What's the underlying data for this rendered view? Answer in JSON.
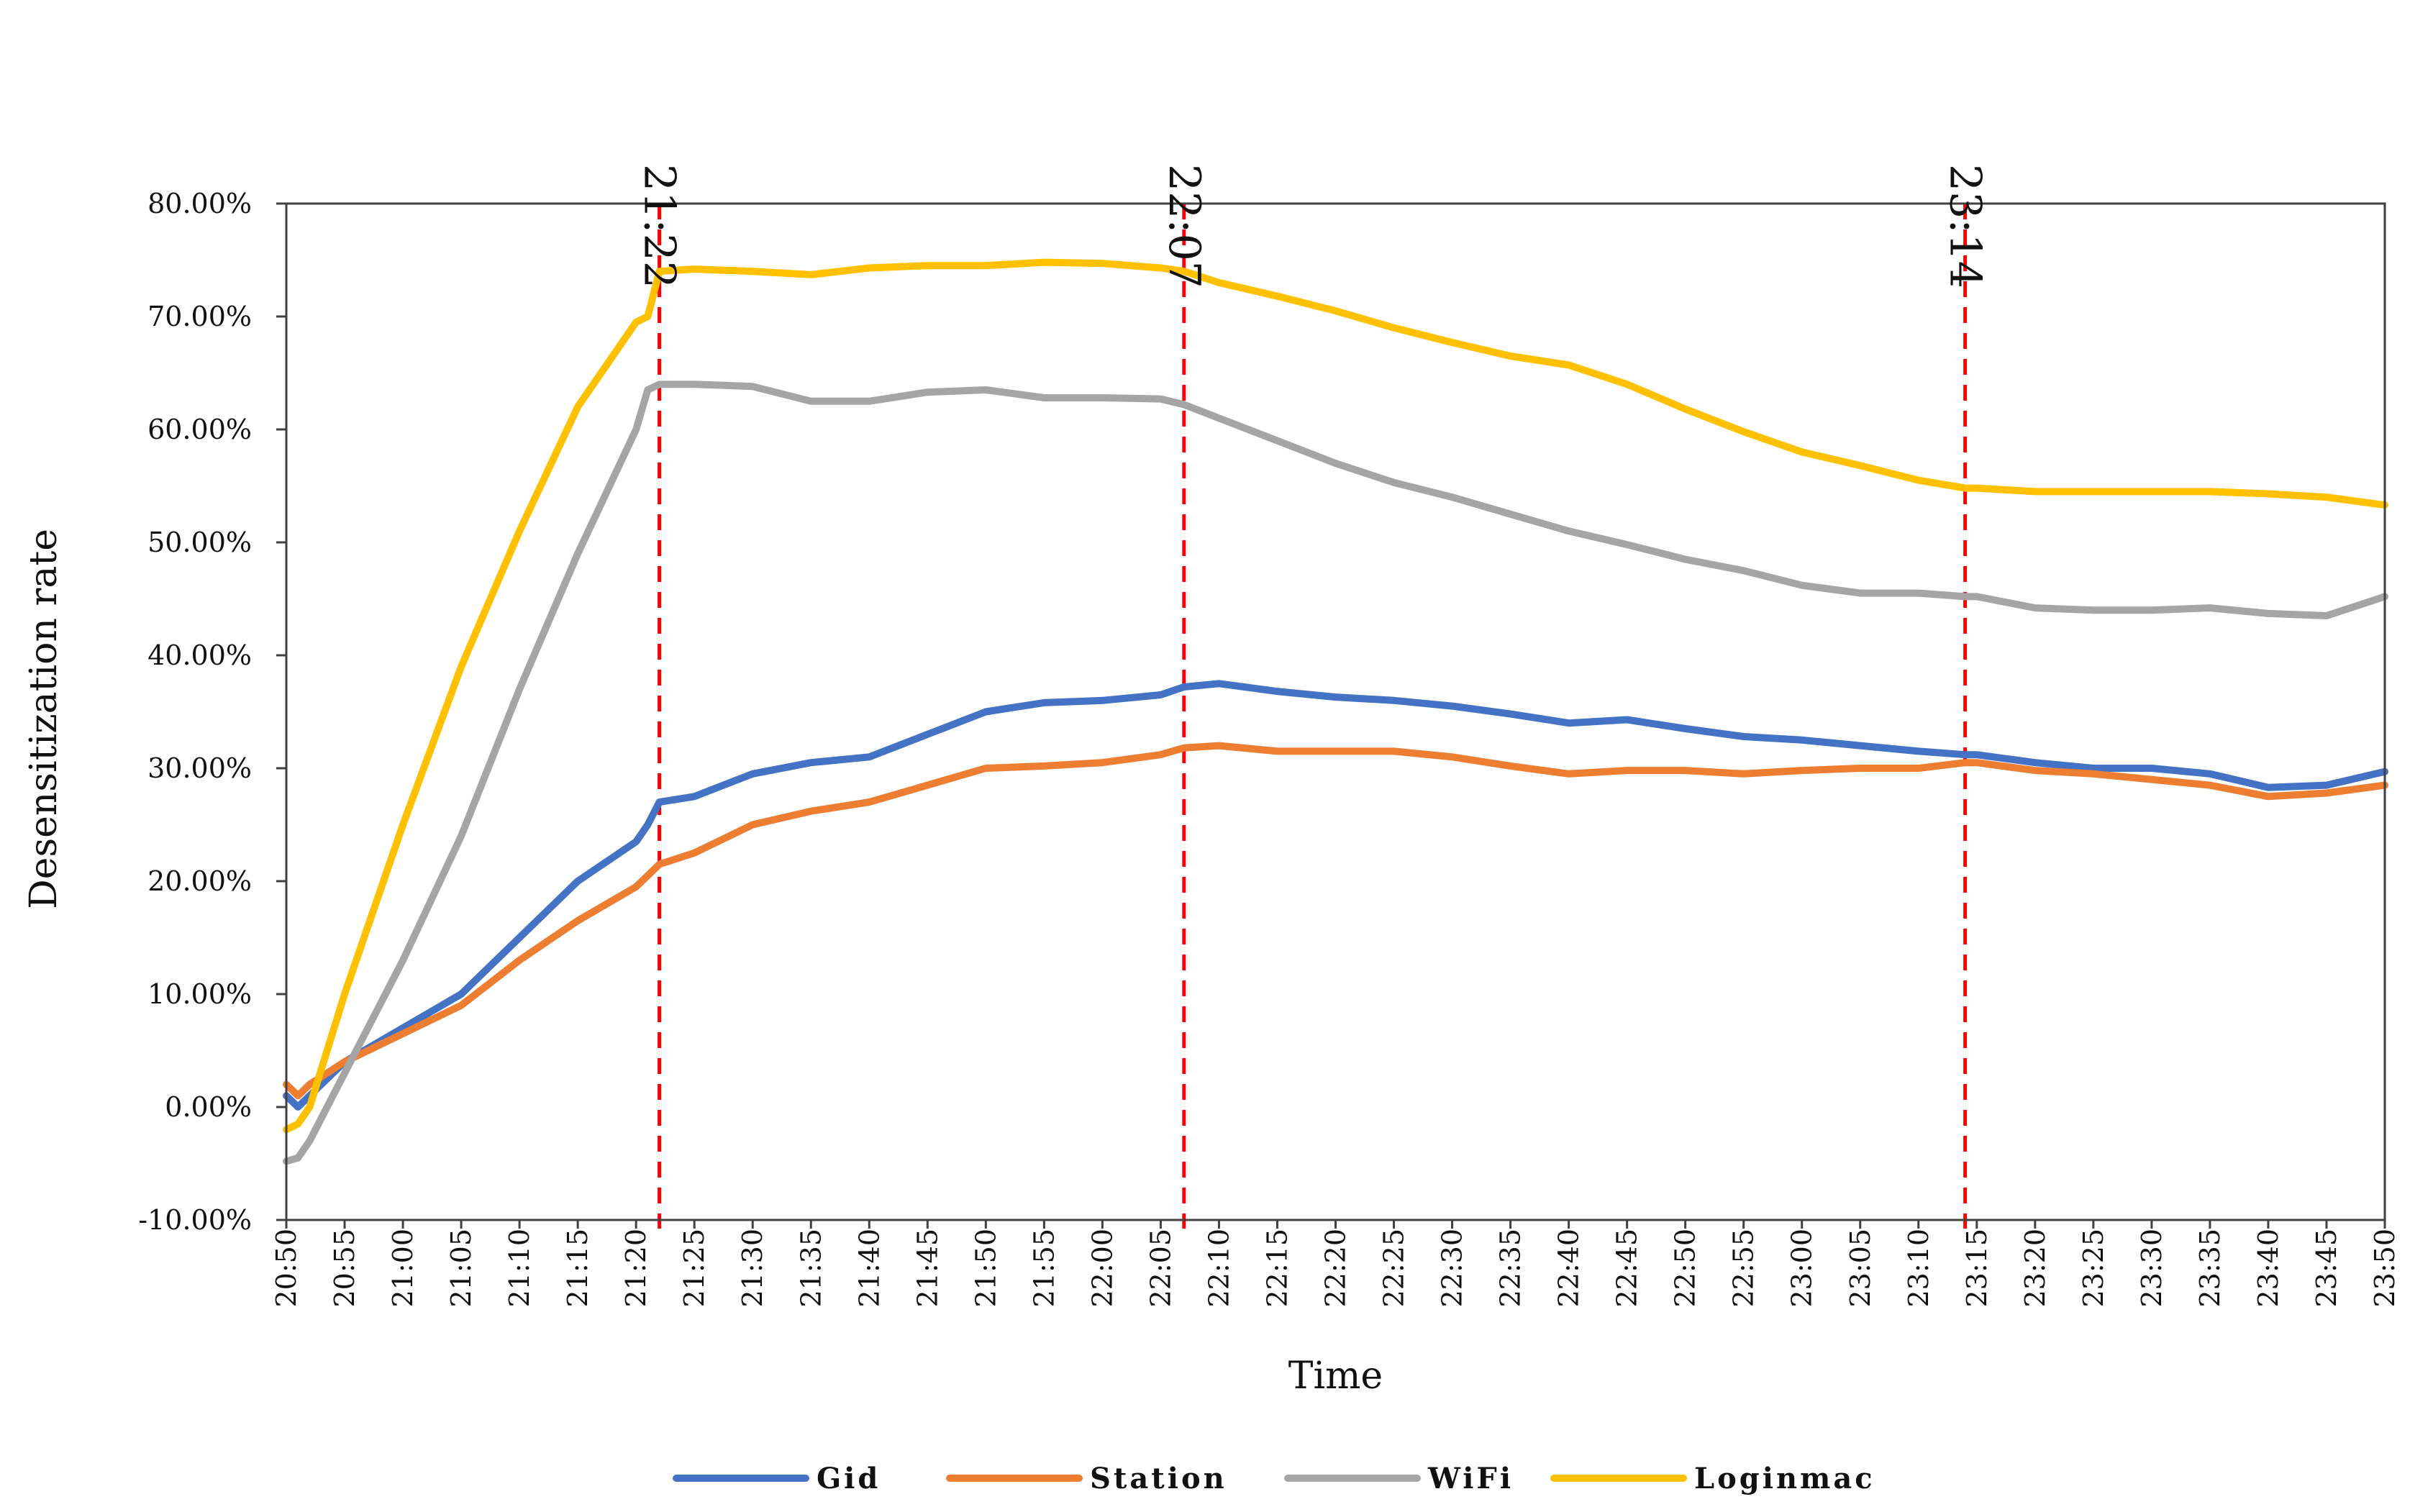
{
  "chart_data": {
    "type": "line",
    "title": "",
    "xlabel": "Time",
    "ylabel": "Desensitization rate",
    "ylim": [
      -0.1,
      0.8
    ],
    "yticks": [
      -0.1,
      0.0,
      0.1,
      0.2,
      0.3,
      0.4,
      0.5,
      0.6,
      0.7,
      0.8
    ],
    "ytick_labels": [
      "-10.00%",
      "0.00%",
      "10.00%",
      "20.00%",
      "30.00%",
      "40.00%",
      "50.00%",
      "60.00%",
      "70.00%",
      "80.00%"
    ],
    "xlim": [
      "20:50",
      "23:50"
    ],
    "xtick_labels": [
      "20:50",
      "20:55",
      "21:00",
      "21:05",
      "21:10",
      "21:15",
      "21:20",
      "21:25",
      "21:30",
      "21:35",
      "21:40",
      "21:45",
      "21:50",
      "21:55",
      "22:00",
      "22:05",
      "22:10",
      "22:15",
      "22:20",
      "22:25",
      "22:30",
      "22:35",
      "22:40",
      "22:45",
      "22:50",
      "22:55",
      "23:00",
      "23:05",
      "23:10",
      "23:15",
      "23:20",
      "23:25",
      "23:30",
      "23:35",
      "23:40",
      "23:45",
      "23:50"
    ],
    "grid": false,
    "legend_position": "bottom",
    "markers": [
      {
        "time": "21:22",
        "label": "21:22"
      },
      {
        "time": "22:07",
        "label": "22:07"
      },
      {
        "time": "23:14",
        "label": "23:14"
      }
    ],
    "marker_color": "#ff0000",
    "series": [
      {
        "name": "Gid",
        "color": "#4472c4",
        "x": [
          "20:50",
          "20:51",
          "20:52",
          "20:55",
          "21:00",
          "21:05",
          "21:10",
          "21:15",
          "21:20",
          "21:21",
          "21:22",
          "21:25",
          "21:30",
          "21:35",
          "21:40",
          "21:45",
          "21:50",
          "21:55",
          "22:00",
          "22:05",
          "22:07",
          "22:10",
          "22:15",
          "22:20",
          "22:25",
          "22:30",
          "22:35",
          "22:40",
          "22:45",
          "22:50",
          "22:55",
          "23:00",
          "23:05",
          "23:10",
          "23:14",
          "23:15",
          "23:20",
          "23:25",
          "23:30",
          "23:35",
          "23:40",
          "23:45",
          "23:50"
        ],
        "y": [
          0.01,
          0.0,
          0.01,
          0.04,
          0.07,
          0.1,
          0.15,
          0.2,
          0.235,
          0.25,
          0.27,
          0.275,
          0.295,
          0.305,
          0.31,
          0.33,
          0.35,
          0.358,
          0.36,
          0.365,
          0.372,
          0.375,
          0.368,
          0.363,
          0.36,
          0.355,
          0.348,
          0.34,
          0.343,
          0.335,
          0.328,
          0.325,
          0.32,
          0.315,
          0.312,
          0.312,
          0.305,
          0.3,
          0.3,
          0.295,
          0.283,
          0.285,
          0.297
        ]
      },
      {
        "name": "Station",
        "color": "#ed7d31",
        "x": [
          "20:50",
          "20:51",
          "20:52",
          "20:55",
          "21:00",
          "21:05",
          "21:10",
          "21:15",
          "21:20",
          "21:21",
          "21:22",
          "21:25",
          "21:30",
          "21:35",
          "21:40",
          "21:45",
          "21:50",
          "21:55",
          "22:00",
          "22:05",
          "22:07",
          "22:10",
          "22:15",
          "22:20",
          "22:25",
          "22:30",
          "22:35",
          "22:40",
          "22:45",
          "22:50",
          "22:55",
          "23:00",
          "23:05",
          "23:10",
          "23:14",
          "23:15",
          "23:20",
          "23:25",
          "23:30",
          "23:35",
          "23:40",
          "23:45",
          "23:50"
        ],
        "y": [
          0.02,
          0.01,
          0.02,
          0.04,
          0.065,
          0.09,
          0.13,
          0.165,
          0.195,
          0.205,
          0.215,
          0.225,
          0.25,
          0.262,
          0.27,
          0.285,
          0.3,
          0.302,
          0.305,
          0.312,
          0.318,
          0.32,
          0.315,
          0.315,
          0.315,
          0.31,
          0.302,
          0.295,
          0.298,
          0.298,
          0.295,
          0.298,
          0.3,
          0.3,
          0.305,
          0.305,
          0.298,
          0.295,
          0.29,
          0.285,
          0.275,
          0.278,
          0.285
        ]
      },
      {
        "name": "WiFi",
        "color": "#a5a5a5",
        "x": [
          "20:50",
          "20:51",
          "20:52",
          "20:55",
          "21:00",
          "21:05",
          "21:10",
          "21:15",
          "21:20",
          "21:21",
          "21:22",
          "21:25",
          "21:30",
          "21:35",
          "21:40",
          "21:45",
          "21:50",
          "21:55",
          "22:00",
          "22:05",
          "22:07",
          "22:10",
          "22:15",
          "22:20",
          "22:25",
          "22:30",
          "22:35",
          "22:40",
          "22:45",
          "22:50",
          "22:55",
          "23:00",
          "23:05",
          "23:10",
          "23:14",
          "23:15",
          "23:20",
          "23:25",
          "23:30",
          "23:35",
          "23:40",
          "23:45",
          "23:50"
        ],
        "y": [
          -0.048,
          -0.045,
          -0.03,
          0.03,
          0.13,
          0.24,
          0.37,
          0.49,
          0.6,
          0.635,
          0.64,
          0.64,
          0.638,
          0.625,
          0.625,
          0.633,
          0.635,
          0.628,
          0.628,
          0.627,
          0.622,
          0.61,
          0.59,
          0.57,
          0.553,
          0.54,
          0.525,
          0.51,
          0.498,
          0.485,
          0.475,
          0.462,
          0.455,
          0.455,
          0.452,
          0.452,
          0.442,
          0.44,
          0.44,
          0.442,
          0.437,
          0.435,
          0.452
        ]
      },
      {
        "name": "Loginmac",
        "color": "#ffc000",
        "x": [
          "20:50",
          "20:51",
          "20:52",
          "20:55",
          "21:00",
          "21:05",
          "21:10",
          "21:15",
          "21:20",
          "21:21",
          "21:22",
          "21:25",
          "21:30",
          "21:35",
          "21:40",
          "21:45",
          "21:50",
          "21:55",
          "22:00",
          "22:05",
          "22:07",
          "22:10",
          "22:15",
          "22:20",
          "22:25",
          "22:30",
          "22:35",
          "22:40",
          "22:45",
          "22:50",
          "22:55",
          "23:00",
          "23:05",
          "23:10",
          "23:14",
          "23:15",
          "23:20",
          "23:25",
          "23:30",
          "23:35",
          "23:40",
          "23:45",
          "23:50"
        ],
        "y": [
          -0.02,
          -0.015,
          0.0,
          0.1,
          0.25,
          0.39,
          0.51,
          0.62,
          0.695,
          0.7,
          0.74,
          0.742,
          0.74,
          0.737,
          0.743,
          0.745,
          0.745,
          0.748,
          0.747,
          0.743,
          0.74,
          0.73,
          0.718,
          0.705,
          0.69,
          0.677,
          0.665,
          0.657,
          0.64,
          0.618,
          0.598,
          0.58,
          0.568,
          0.555,
          0.548,
          0.548,
          0.545,
          0.545,
          0.545,
          0.545,
          0.543,
          0.54,
          0.533
        ]
      }
    ]
  }
}
